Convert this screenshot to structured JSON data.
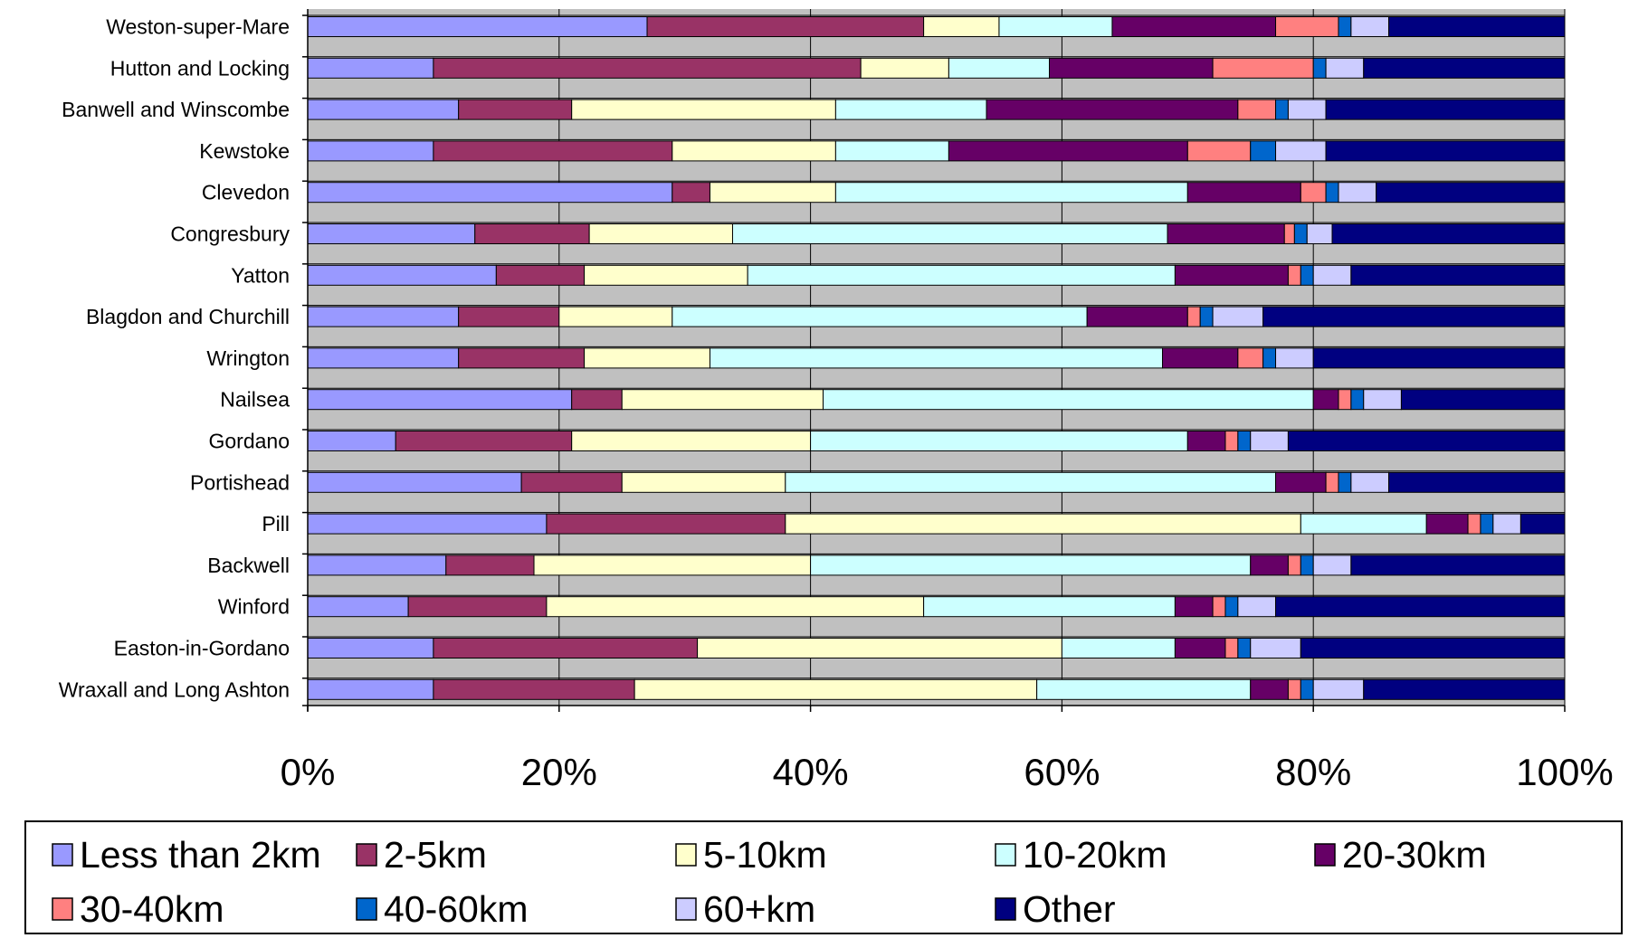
{
  "chart_data": {
    "type": "bar",
    "orientation": "horizontal",
    "stacked": "percent",
    "title": "",
    "xlabel": "",
    "ylabel": "",
    "xlim": [
      0,
      100
    ],
    "x_ticks": [
      "0%",
      "20%",
      "40%",
      "60%",
      "80%",
      "100%"
    ],
    "grid": true,
    "legend_position": "bottom",
    "categories": [
      "Weston-super-Mare",
      "Hutton and Locking",
      "Banwell and Winscombe",
      "Kewstoke",
      "Clevedon",
      "Congresbury",
      "Yatton",
      "Blagdon and Churchill",
      "Wrington",
      "Nailsea",
      "Gordano",
      "Portishead",
      "Pill",
      "Backwell",
      "Winford",
      "Easton-in-Gordano",
      "Wraxall and Long Ashton"
    ],
    "series": [
      {
        "name": "Less than 2km",
        "color": "#9999ff",
        "values": [
          27,
          10,
          12,
          10,
          29,
          13.3,
          15,
          12,
          12,
          21,
          7,
          17,
          19,
          11,
          8,
          10,
          10
        ]
      },
      {
        "name": "2-5km",
        "color": "#993366",
        "values": [
          22,
          34,
          9,
          19,
          3,
          9.1,
          7,
          8,
          10,
          4,
          14,
          8,
          19,
          7,
          11,
          21,
          16
        ]
      },
      {
        "name": "5-10km",
        "color": "#ffffcc",
        "values": [
          6,
          7,
          21,
          13,
          10,
          11.4,
          13,
          9,
          10,
          16,
          19,
          13,
          41,
          22,
          30,
          29,
          32
        ]
      },
      {
        "name": "10-20km",
        "color": "#ccffff",
        "values": [
          9,
          8,
          12,
          9,
          28,
          34.6,
          34,
          33,
          36,
          39,
          30,
          39,
          10,
          35,
          20,
          9,
          17
        ]
      },
      {
        "name": "20-30km",
        "color": "#660066",
        "values": [
          13,
          13,
          20,
          19,
          9,
          9.3,
          9,
          8,
          6,
          2,
          3,
          4,
          3.3,
          3,
          3,
          4,
          3
        ]
      },
      {
        "name": "30-40km",
        "color": "#ff8080",
        "values": [
          5,
          8,
          3,
          5,
          2,
          0.8,
          1,
          1,
          2,
          1,
          1,
          1,
          1,
          1,
          1,
          1,
          1
        ]
      },
      {
        "name": "40-60km",
        "color": "#0066cc",
        "values": [
          1,
          1,
          1,
          2,
          1,
          1,
          1,
          1,
          1,
          1,
          1,
          1,
          1,
          1,
          1,
          1,
          1
        ]
      },
      {
        "name": "60+km",
        "color": "#ccccff",
        "values": [
          3,
          3,
          3,
          4,
          3,
          2,
          3,
          4,
          3,
          3,
          3,
          3,
          2.2,
          3,
          3,
          4,
          4
        ]
      },
      {
        "name": "Other",
        "color": "#000080",
        "values": [
          14,
          16,
          19,
          19,
          15,
          18.5,
          17,
          24,
          20,
          13,
          22,
          14,
          3.5,
          17,
          23,
          21,
          16
        ]
      }
    ]
  },
  "colors": {
    "plot_background": "#c0c0c0",
    "gridline": "#000000",
    "bar_outline": "#000000"
  }
}
